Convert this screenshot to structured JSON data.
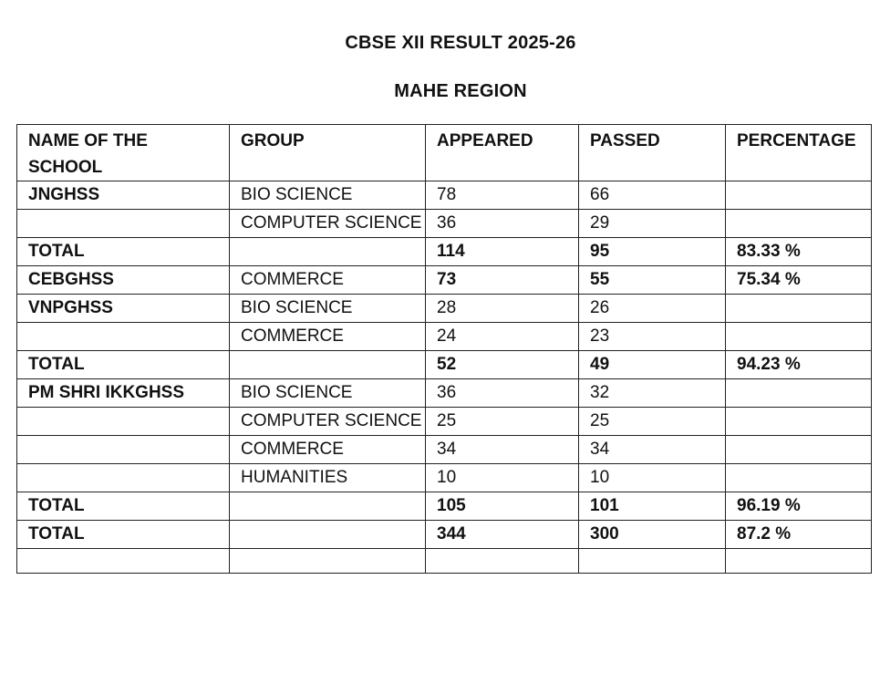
{
  "document": {
    "title": "CBSE XII RESULT 2025-26",
    "subtitle": "MAHE REGION"
  },
  "table": {
    "headers": {
      "school": "NAME OF THE SCHOOL",
      "group": "GROUP",
      "appeared": "APPEARED",
      "passed": "PASSED",
      "percentage": "PERCENTAGE"
    },
    "rows": [
      {
        "school": "JNGHSS",
        "group": "BIO SCIENCE",
        "appeared": "78",
        "passed": "66",
        "percentage": ""
      },
      {
        "school": "",
        "group": "COMPUTER SCIENCE",
        "appeared": "36",
        "passed": "29",
        "percentage": ""
      },
      {
        "school": "TOTAL",
        "group": "",
        "appeared": "114",
        "passed": "95",
        "percentage": "83.33 %"
      },
      {
        "school": "CEBGHSS",
        "group": "COMMERCE",
        "appeared": "73",
        "passed": "55",
        "percentage": "75.34 %"
      },
      {
        "school": "VNPGHSS",
        "group": "BIO SCIENCE",
        "appeared": "28",
        "passed": "26",
        "percentage": ""
      },
      {
        "school": "",
        "group": "COMMERCE",
        "appeared": "24",
        "passed": "23",
        "percentage": ""
      },
      {
        "school": "TOTAL",
        "group": "",
        "appeared": "52",
        "passed": "49",
        "percentage": "94.23 %"
      },
      {
        "school": "PM SHRI IKKGHSS",
        "group": "BIO SCIENCE",
        "appeared": "36",
        "passed": "32",
        "percentage": ""
      },
      {
        "school": "",
        "group": "COMPUTER SCIENCE",
        "appeared": "25",
        "passed": "25",
        "percentage": ""
      },
      {
        "school": "",
        "group": "COMMERCE",
        "appeared": "34",
        "passed": "34",
        "percentage": ""
      },
      {
        "school": "",
        "group": "HUMANITIES",
        "appeared": "10",
        "passed": "10",
        "percentage": ""
      },
      {
        "school": "TOTAL",
        "group": "",
        "appeared": "105",
        "passed": "101",
        "percentage": "96.19 %"
      },
      {
        "school": "TOTAL",
        "group": "",
        "appeared": "344",
        "passed": "300",
        "percentage": "87.2 %"
      },
      {
        "school": "",
        "group": "",
        "appeared": "",
        "passed": "",
        "percentage": ""
      }
    ]
  }
}
